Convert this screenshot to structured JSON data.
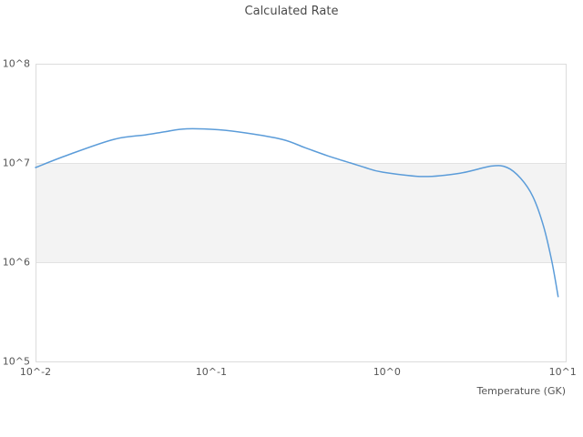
{
  "colors": {
    "line": "#5b9cd9",
    "band_fill": "#f3f3f3",
    "gridline": "#e2e2e2",
    "plot_border": "#dcdcdc",
    "tick_text": "#555555",
    "title_text": "#4a4a4a",
    "background": "#ffffff"
  },
  "chart_data": {
    "type": "line",
    "title": "Calculated Rate",
    "xlabel": "Temperature (GK)",
    "ylabel": "",
    "x_scale": "log",
    "y_scale": "log",
    "xlim": [
      0.01,
      10.4
    ],
    "ylim": [
      100000.0,
      100000000.0
    ],
    "grid": "horizontal-band-edges-only",
    "legend_position": "none",
    "band": {
      "y_from": 1000000.0,
      "y_to": 10000000.0,
      "color": "#f3f3f3"
    },
    "x_ticks": {
      "values": [
        0.01,
        0.1,
        1,
        10
      ],
      "labels": [
        "10^-2",
        "10^-1",
        "10^0",
        "10^1"
      ]
    },
    "y_ticks": {
      "values": [
        100000.0,
        1000000.0,
        10000000.0,
        100000000.0
      ],
      "labels": [
        "10^5",
        "10^6",
        "10^7",
        "10^8"
      ]
    },
    "series": [
      {
        "name": "Calculated Rate",
        "color": "#5b9cd9",
        "x": [
          0.01,
          0.0154,
          0.0279,
          0.0424,
          0.055,
          0.0725,
          0.11,
          0.157,
          0.253,
          0.34,
          0.46,
          0.62,
          0.75,
          0.94,
          1.61,
          2.61,
          3.94,
          4.83,
          5.77,
          6.76,
          7.78,
          8.69,
          9.42
        ],
        "y": [
          9000000.0,
          12100000.0,
          17300000.0,
          19200000.0,
          20700000.0,
          22100000.0,
          21600000.0,
          20100000.0,
          17300000.0,
          14300000.0,
          11800000.0,
          10000000.0,
          9000000.0,
          8100000.0,
          7300000.0,
          7900000.0,
          9300000.0,
          9000000.0,
          7000000.0,
          4600000.0,
          2300000.0,
          1000000.0,
          450000.0
        ]
      }
    ]
  }
}
